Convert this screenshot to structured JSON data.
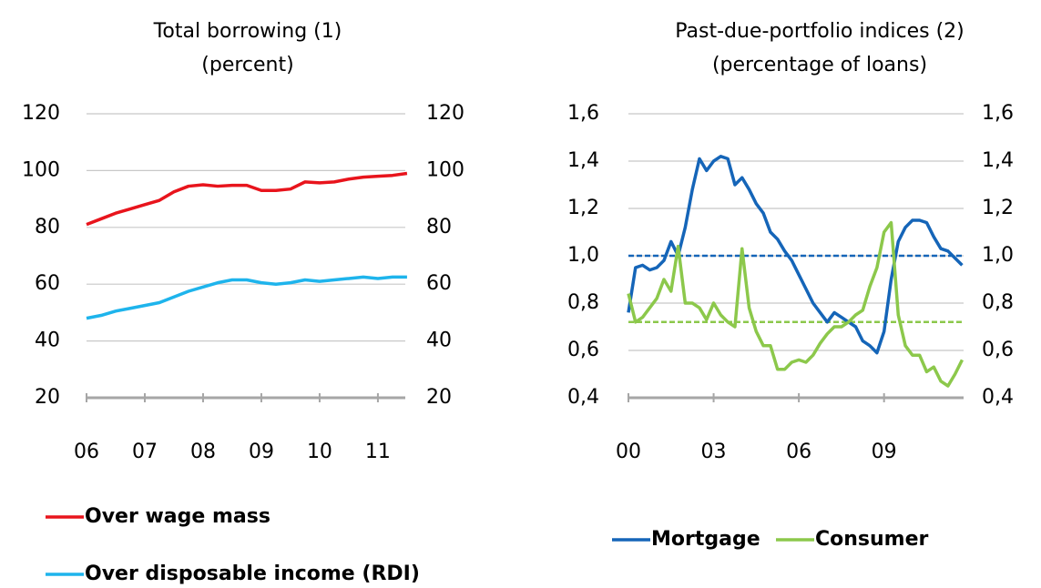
{
  "chart_data": [
    {
      "type": "line",
      "title": "Total borrowing (1)",
      "subtitle": "(percent)",
      "x": [
        2006,
        2006.25,
        2006.5,
        2006.75,
        2007,
        2007.25,
        2007.5,
        2007.75,
        2008,
        2008.25,
        2008.5,
        2008.75,
        2009,
        2009.25,
        2009.5,
        2009.75,
        2010,
        2010.25,
        2010.5,
        2010.75,
        2011,
        2011.25,
        2011.5
      ],
      "series": [
        {
          "name": "Over wage mass",
          "color": "#e8141c",
          "values": [
            81,
            83,
            85,
            86.5,
            88,
            89.5,
            92.5,
            94.5,
            95,
            94.5,
            94.8,
            94.8,
            93,
            93,
            93.5,
            96,
            95.7,
            96,
            97,
            97.7,
            98,
            98.3,
            99
          ]
        },
        {
          "name": "Over disposable income (RDI)",
          "color": "#1eb4ec",
          "values": [
            48,
            49,
            50.5,
            51.5,
            52.5,
            53.5,
            55.5,
            57.5,
            59,
            60.5,
            61.5,
            61.5,
            60.5,
            60,
            60.5,
            61.5,
            61,
            61.5,
            62,
            62.5,
            62,
            62.5,
            62.5
          ]
        }
      ],
      "xlim": [
        2006,
        2011.47
      ],
      "xticks": [
        {
          "value": 2006,
          "label": "06"
        },
        {
          "value": 2007,
          "label": "07"
        },
        {
          "value": 2008,
          "label": "08"
        },
        {
          "value": 2009,
          "label": "09"
        },
        {
          "value": 2010,
          "label": "10"
        },
        {
          "value": 2011,
          "label": "11"
        }
      ],
      "ylim": [
        20,
        120
      ],
      "yticks": [
        20,
        40,
        60,
        80,
        100,
        120
      ],
      "grid": true,
      "legend": "bottom"
    },
    {
      "type": "line",
      "title": "Past-due-portfolio indices (2)",
      "subtitle": "(percentage of loans)",
      "x": [
        2000,
        2000.25,
        2000.5,
        2000.75,
        2001,
        2001.25,
        2001.5,
        2001.75,
        2002,
        2002.25,
        2002.5,
        2002.75,
        2003,
        2003.25,
        2003.5,
        2003.75,
        2004,
        2004.25,
        2004.5,
        2004.75,
        2005,
        2005.25,
        2005.5,
        2005.75,
        2006,
        2006.25,
        2006.5,
        2006.75,
        2007,
        2007.25,
        2007.5,
        2007.75,
        2008,
        2008.25,
        2008.5,
        2008.75,
        2009,
        2009.25,
        2009.5,
        2009.75,
        2010,
        2010.25,
        2010.5,
        2010.75,
        2011,
        2011.25,
        2011.5,
        2011.75
      ],
      "series": [
        {
          "name": "Mortgage",
          "color": "#1565b8",
          "values": [
            0.76,
            0.95,
            0.96,
            0.94,
            0.95,
            0.98,
            1.06,
            1.0,
            1.12,
            1.28,
            1.41,
            1.36,
            1.4,
            1.42,
            1.41,
            1.3,
            1.33,
            1.28,
            1.22,
            1.18,
            1.1,
            1.07,
            1.02,
            0.98,
            0.92,
            0.86,
            0.8,
            0.76,
            0.72,
            0.76,
            0.74,
            0.72,
            0.7,
            0.64,
            0.62,
            0.59,
            0.68,
            0.9,
            1.06,
            1.12,
            1.15,
            1.15,
            1.14,
            1.08,
            1.03,
            1.02,
            0.99,
            0.96
          ]
        },
        {
          "name": "Consumer",
          "color": "#8cc84b",
          "values": [
            0.84,
            0.72,
            0.74,
            0.78,
            0.82,
            0.9,
            0.85,
            1.04,
            0.8,
            0.8,
            0.78,
            0.73,
            0.8,
            0.75,
            0.72,
            0.7,
            1.03,
            0.78,
            0.68,
            0.62,
            0.62,
            0.52,
            0.52,
            0.55,
            0.56,
            0.55,
            0.58,
            0.63,
            0.67,
            0.7,
            0.7,
            0.72,
            0.75,
            0.77,
            0.87,
            0.95,
            1.1,
            1.14,
            0.75,
            0.62,
            0.58,
            0.58,
            0.51,
            0.53,
            0.47,
            0.45,
            0.5,
            0.56
          ]
        }
      ],
      "reference_lines": [
        {
          "value": 1.0,
          "color": "#1565b8",
          "dashed": true
        },
        {
          "value": 0.72,
          "color": "#8cc84b",
          "dashed": true
        }
      ],
      "xlim": [
        2000,
        2011.8
      ],
      "xticks": [
        {
          "value": 2000,
          "label": "00"
        },
        {
          "value": 2003,
          "label": "03"
        },
        {
          "value": 2006,
          "label": "06"
        },
        {
          "value": 2009,
          "label": "09"
        }
      ],
      "ylim": [
        0.4,
        1.6
      ],
      "yticks": [
        {
          "value": 0.4,
          "label": "0,4"
        },
        {
          "value": 0.6,
          "label": "0,6"
        },
        {
          "value": 0.8,
          "label": "0,8"
        },
        {
          "value": 1.0,
          "label": "1,0"
        },
        {
          "value": 1.2,
          "label": "1,2"
        },
        {
          "value": 1.4,
          "label": "1,4"
        },
        {
          "value": 1.6,
          "label": "1,6"
        }
      ],
      "grid": true,
      "legend": "bottom"
    }
  ]
}
